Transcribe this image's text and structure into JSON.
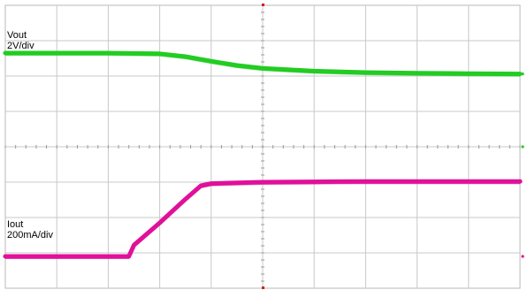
{
  "chart_data": {
    "type": "line",
    "title": "",
    "xlabel": "",
    "ylabel": "",
    "grid": true,
    "x_divisions": 10,
    "y_divisions": 8,
    "ylim": [
      0,
      8
    ],
    "xlim": [
      0,
      10
    ],
    "series": [
      {
        "name": "Vout",
        "scale": "2V/div",
        "color": "#22cc22",
        "x": [
          0,
          1,
          2,
          3,
          3.5,
          4,
          4.5,
          5,
          6,
          7,
          8,
          9,
          10
        ],
        "values": [
          6.65,
          6.65,
          6.65,
          6.63,
          6.55,
          6.42,
          6.3,
          6.22,
          6.14,
          6.1,
          6.08,
          6.07,
          6.06
        ]
      },
      {
        "name": "Iout",
        "scale": "200mA/div",
        "color": "#e0109a",
        "x": [
          0,
          1,
          2,
          2.4,
          2.5,
          3,
          3.5,
          3.8,
          4,
          5,
          6,
          7,
          8,
          9,
          10
        ],
        "values": [
          0.9,
          0.9,
          0.9,
          0.9,
          1.22,
          1.85,
          2.52,
          2.9,
          2.96,
          3.0,
          3.01,
          3.02,
          3.02,
          3.02,
          3.02
        ]
      }
    ],
    "labels": {
      "vout_name": "Vout",
      "vout_scale": "2V/div",
      "iout_name": "Iout",
      "iout_scale": "200mA/div"
    }
  }
}
